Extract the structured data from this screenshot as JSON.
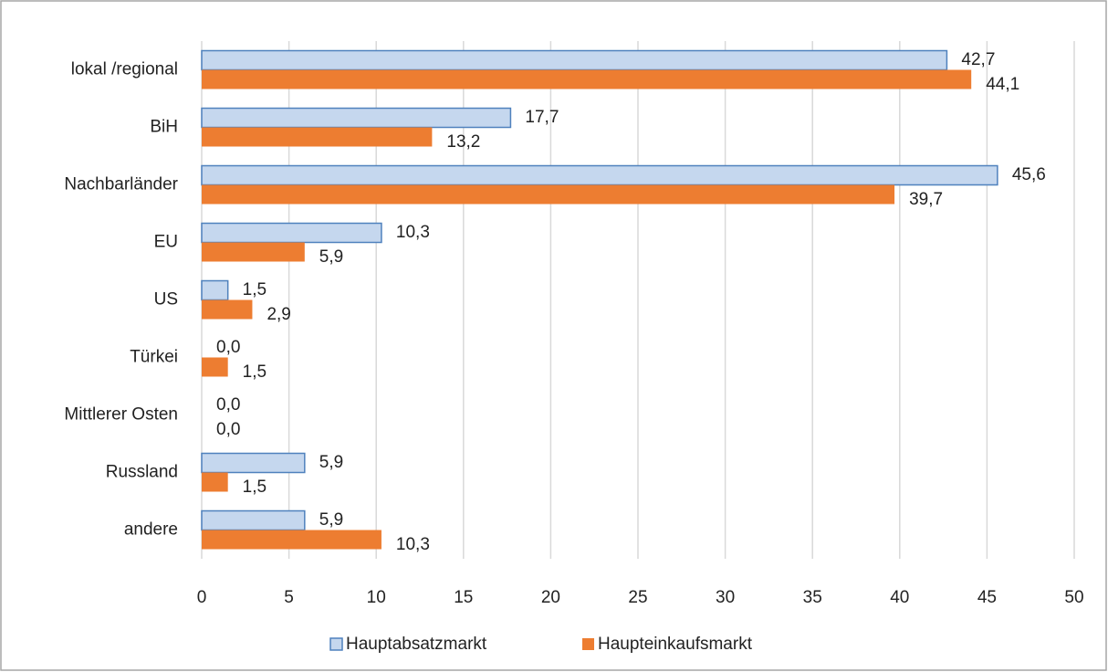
{
  "chart_data": {
    "type": "hbar",
    "categories": [
      "lokal /regional",
      "BiH",
      "Nachbarländer",
      "EU",
      "US",
      "Türkei",
      "Mittlerer Osten",
      "Russland",
      "andere"
    ],
    "series": [
      {
        "name": "Hauptabsatzmarkt",
        "color": "#c5d7ee",
        "stroke": "#4f81bd",
        "values": [
          42.7,
          17.7,
          45.6,
          10.3,
          1.5,
          0,
          0,
          5.9,
          5.9
        ],
        "value_labels": [
          "42,7",
          "17,7",
          "45,6",
          "10,3",
          "1,5",
          "0,0",
          "0,0",
          "5,9",
          "5,9"
        ]
      },
      {
        "name": "Haupteinkaufsmarkt",
        "color": "#ed7d31",
        "values": [
          44.1,
          13.2,
          39.7,
          5.9,
          2.9,
          1.5,
          0,
          1.5,
          10.3
        ],
        "value_labels": [
          "44,1",
          "13,2",
          "39,7",
          "5,9",
          "2,9",
          "1,5",
          "0,0",
          "1,5",
          "10,3"
        ]
      }
    ],
    "xlim": [
      0,
      50
    ],
    "xticks": [
      0,
      5,
      10,
      15,
      20,
      25,
      30,
      35,
      40,
      45,
      50
    ],
    "grid": true,
    "legend": "bottom"
  }
}
